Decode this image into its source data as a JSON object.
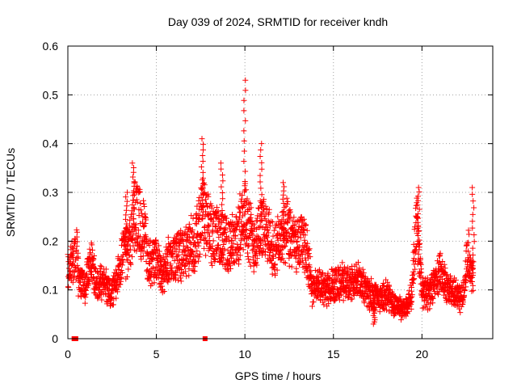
{
  "chart_data": {
    "type": "scatter",
    "title": "Day 039 of 2024, SRMTID for receiver kndh",
    "xlabel": "GPS time / hours",
    "ylabel": "SRMTID / TECUs",
    "xlim": [
      0,
      24
    ],
    "ylim": [
      0,
      0.6
    ],
    "xticks": [
      "0",
      "5",
      "10",
      "15",
      "20"
    ],
    "yticks": [
      "0",
      "0.1",
      "0.2",
      "0.3",
      "0.4",
      "0.5",
      "0.6"
    ],
    "grid": true,
    "marker": "plus",
    "color": "#ff0000",
    "zero_points_x": [
      0.35,
      0.45,
      7.75
    ],
    "profile": [
      [
        0.0,
        0.13
      ],
      [
        0.5,
        0.18
      ],
      [
        0.6,
        0.12
      ],
      [
        1.0,
        0.11
      ],
      [
        1.3,
        0.16
      ],
      [
        1.6,
        0.11
      ],
      [
        2.0,
        0.12
      ],
      [
        2.4,
        0.09
      ],
      [
        2.8,
        0.12
      ],
      [
        3.1,
        0.17
      ],
      [
        3.5,
        0.19
      ],
      [
        3.8,
        0.26
      ],
      [
        4.3,
        0.22
      ],
      [
        4.6,
        0.15
      ],
      [
        5.0,
        0.17
      ],
      [
        5.3,
        0.12
      ],
      [
        5.7,
        0.16
      ],
      [
        6.2,
        0.17
      ],
      [
        6.7,
        0.18
      ],
      [
        7.2,
        0.2
      ],
      [
        7.6,
        0.26
      ],
      [
        8.0,
        0.22
      ],
      [
        8.5,
        0.21
      ],
      [
        9.0,
        0.19
      ],
      [
        9.5,
        0.2
      ],
      [
        10.0,
        0.26
      ],
      [
        10.5,
        0.19
      ],
      [
        10.9,
        0.23
      ],
      [
        11.3,
        0.21
      ],
      [
        11.7,
        0.18
      ],
      [
        12.0,
        0.2
      ],
      [
        12.4,
        0.22
      ],
      [
        12.8,
        0.19
      ],
      [
        13.2,
        0.2
      ],
      [
        13.5,
        0.18
      ],
      [
        13.8,
        0.1
      ],
      [
        14.2,
        0.11
      ],
      [
        14.6,
        0.1
      ],
      [
        15.0,
        0.11
      ],
      [
        15.5,
        0.12
      ],
      [
        16.0,
        0.11
      ],
      [
        16.4,
        0.12
      ],
      [
        16.8,
        0.1
      ],
      [
        17.2,
        0.09
      ],
      [
        17.6,
        0.08
      ],
      [
        18.0,
        0.09
      ],
      [
        18.5,
        0.07
      ],
      [
        19.0,
        0.06
      ],
      [
        19.4,
        0.09
      ],
      [
        19.7,
        0.24
      ],
      [
        20.0,
        0.1
      ],
      [
        20.4,
        0.09
      ],
      [
        20.8,
        0.12
      ],
      [
        21.1,
        0.14
      ],
      [
        21.5,
        0.1
      ],
      [
        21.9,
        0.09
      ],
      [
        22.3,
        0.08
      ],
      [
        22.6,
        0.18
      ],
      [
        22.9,
        0.13
      ]
    ],
    "spikes": [
      [
        3.7,
        0.36
      ],
      [
        7.6,
        0.41
      ],
      [
        8.7,
        0.36
      ],
      [
        10.0,
        0.53
      ],
      [
        10.9,
        0.4
      ],
      [
        19.8,
        0.31
      ],
      [
        22.9,
        0.31
      ],
      [
        3.3,
        0.3
      ],
      [
        12.2,
        0.32
      ],
      [
        17.3,
        0.03
      ]
    ],
    "points_per_hour": 120
  }
}
